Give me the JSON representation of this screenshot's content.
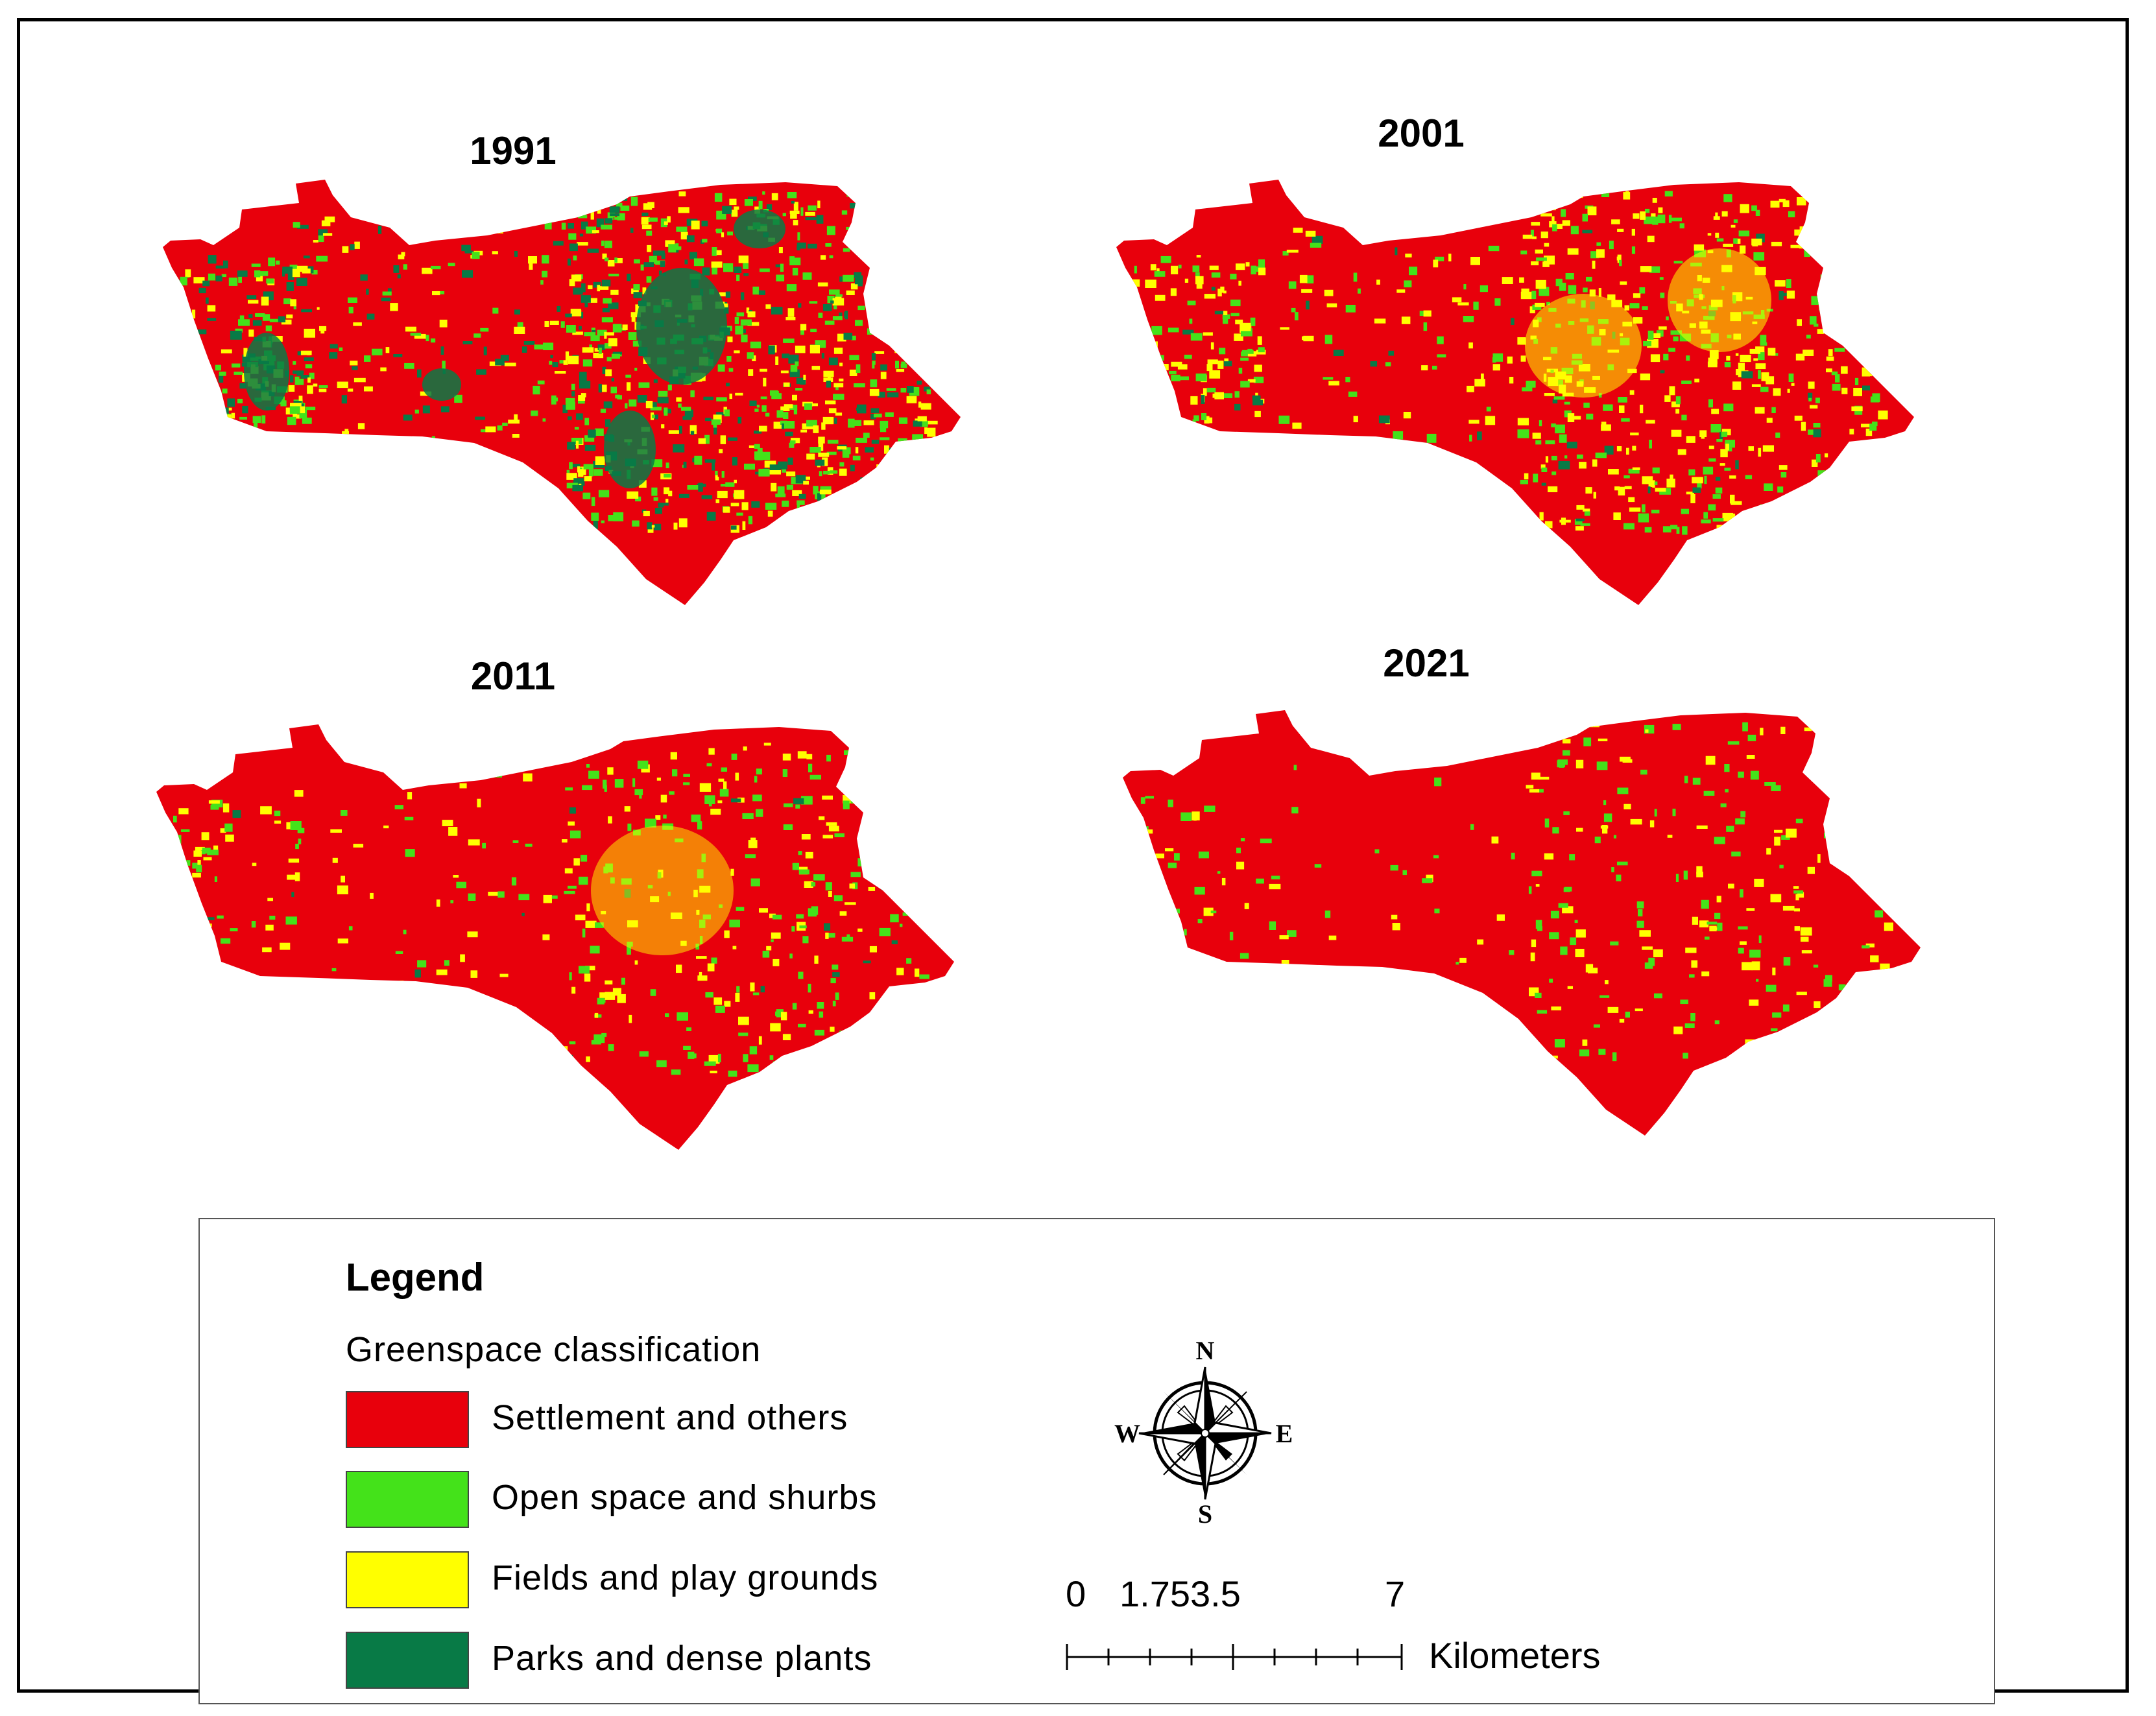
{
  "maps": [
    {
      "title": "1991"
    },
    {
      "title": "2001"
    },
    {
      "title": "2011"
    },
    {
      "title": "2021"
    }
  ],
  "legend": {
    "title": "Legend",
    "subtitle": "Greenspace classification",
    "items": [
      {
        "label": "Settlement and others",
        "color": "#e8000c"
      },
      {
        "label": "Open space and shurbs",
        "color": "#44e21a"
      },
      {
        "label": "Fields and play grounds",
        "color": "#ffff00"
      },
      {
        "label": "Parks and dense plants",
        "color": "#087a46"
      }
    ]
  },
  "compass": {
    "n": "N",
    "s": "S",
    "e": "E",
    "w": "W"
  },
  "scale": {
    "ticks": [
      "0",
      "1.753.5",
      "7"
    ],
    "units": "Kilometers"
  }
}
